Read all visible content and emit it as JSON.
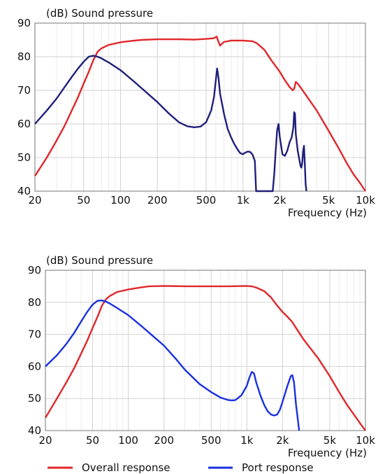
{
  "chart_data": [
    {
      "type": "line",
      "ylabel": "(dB)  Sound pressure",
      "xlabel": "Frequency  (Hz)",
      "x_scale": "log",
      "xlim": [
        20,
        10000
      ],
      "ylim": [
        40,
        90
      ],
      "grid": true,
      "x_tick_labels": [
        "20",
        "50",
        "100",
        "200",
        "500",
        "1k",
        "2k",
        "5k",
        "10k"
      ],
      "x_ticks": [
        20,
        50,
        100,
        200,
        500,
        1000,
        2000,
        5000,
        10000
      ],
      "y_ticks": [
        40,
        50,
        60,
        70,
        80,
        90
      ],
      "series": [
        {
          "color": "#e0272b",
          "points": [
            [
              20,
              44.5
            ],
            [
              25,
              50
            ],
            [
              30,
              55
            ],
            [
              35,
              59.5
            ],
            [
              40,
              64
            ],
            [
              45,
              68
            ],
            [
              50,
              72
            ],
            [
              55,
              75.5
            ],
            [
              60,
              79
            ],
            [
              65,
              81.5
            ],
            [
              70,
              82.5
            ],
            [
              80,
              83.5
            ],
            [
              100,
              84.3
            ],
            [
              130,
              84.8
            ],
            [
              150,
              85
            ],
            [
              200,
              85.2
            ],
            [
              300,
              85.2
            ],
            [
              400,
              85.1
            ],
            [
              500,
              85.3
            ],
            [
              580,
              85.5
            ],
            [
              610,
              86
            ],
            [
              630,
              84.5
            ],
            [
              650,
              83.3
            ],
            [
              680,
              84
            ],
            [
              700,
              84.4
            ],
            [
              800,
              84.8
            ],
            [
              1000,
              84.8
            ],
            [
              1200,
              84.6
            ],
            [
              1300,
              84
            ],
            [
              1500,
              82
            ],
            [
              1700,
              79
            ],
            [
              2000,
              75.5
            ],
            [
              2200,
              73
            ],
            [
              2400,
              71
            ],
            [
              2550,
              70
            ],
            [
              2620,
              70.5
            ],
            [
              2700,
              72.5
            ],
            [
              2800,
              72
            ],
            [
              3000,
              70.5
            ],
            [
              4000,
              64
            ],
            [
              5000,
              58
            ],
            [
              6000,
              53
            ],
            [
              7000,
              48.5
            ],
            [
              8000,
              45
            ],
            [
              9000,
              42.5
            ],
            [
              10000,
              40
            ]
          ]
        },
        {
          "color": "#1f1f7a",
          "points": [
            [
              20,
              60
            ],
            [
              25,
              64
            ],
            [
              30,
              67.5
            ],
            [
              35,
              71
            ],
            [
              40,
              74
            ],
            [
              45,
              76.5
            ],
            [
              50,
              78.5
            ],
            [
              55,
              80
            ],
            [
              60,
              80.3
            ],
            [
              65,
              80
            ],
            [
              70,
              79.5
            ],
            [
              80,
              78.3
            ],
            [
              100,
              76
            ],
            [
              130,
              72.5
            ],
            [
              150,
              70.5
            ],
            [
              200,
              66.5
            ],
            [
              250,
              63
            ],
            [
              300,
              60.5
            ],
            [
              350,
              59.3
            ],
            [
              400,
              59
            ],
            [
              450,
              59.2
            ],
            [
              500,
              60.5
            ],
            [
              550,
              64
            ],
            [
              580,
              68
            ],
            [
              600,
              73
            ],
            [
              615,
              76.5
            ],
            [
              630,
              74
            ],
            [
              650,
              69
            ],
            [
              700,
              63
            ],
            [
              750,
              58.5
            ],
            [
              800,
              56
            ],
            [
              850,
              54
            ],
            [
              900,
              52.5
            ],
            [
              950,
              51.3
            ],
            [
              1000,
              51
            ],
            [
              1050,
              51.5
            ],
            [
              1100,
              51.8
            ],
            [
              1150,
              51.6
            ],
            [
              1200,
              50.8
            ],
            [
              1250,
              49
            ],
            [
              1260,
              46
            ],
            [
              1280,
              40
            ],
            [
              1600,
              40
            ],
            [
              1620,
              40
            ],
            [
              1750,
              40
            ],
            [
              1800,
              45
            ],
            [
              1850,
              52
            ],
            [
              1900,
              58
            ],
            [
              1950,
              60
            ],
            [
              2000,
              56
            ],
            [
              2100,
              51
            ],
            [
              2200,
              50.5
            ],
            [
              2300,
              52
            ],
            [
              2400,
              54.5
            ],
            [
              2500,
              56
            ],
            [
              2580,
              59
            ],
            [
              2620,
              63.5
            ],
            [
              2660,
              63
            ],
            [
              2700,
              57
            ],
            [
              2800,
              52
            ],
            [
              2950,
              47.5
            ],
            [
              3000,
              47
            ],
            [
              3050,
              48.5
            ],
            [
              3100,
              52
            ],
            [
              3150,
              53.5
            ],
            [
              3200,
              48
            ],
            [
              3250,
              42
            ],
            [
              3300,
              40
            ]
          ]
        }
      ]
    },
    {
      "type": "line",
      "ylabel": "(dB)  Sound pressure",
      "xlabel": "Frequency  (Hz)",
      "x_scale": "log",
      "xlim": [
        20,
        10000
      ],
      "ylim": [
        40,
        90
      ],
      "grid": true,
      "x_tick_labels": [
        "20",
        "50",
        "100",
        "200",
        "500",
        "1k",
        "2k",
        "5k",
        "10k"
      ],
      "x_ticks": [
        20,
        50,
        100,
        200,
        500,
        1000,
        2000,
        5000,
        10000
      ],
      "y_ticks": [
        40,
        50,
        60,
        70,
        80,
        90
      ],
      "series": [
        {
          "name": "Overall response",
          "color": "#e0272b",
          "points": [
            [
              20,
              44
            ],
            [
              25,
              50
            ],
            [
              30,
              55
            ],
            [
              35,
              59.5
            ],
            [
              40,
              64
            ],
            [
              45,
              68
            ],
            [
              50,
              72
            ],
            [
              55,
              75.5
            ],
            [
              60,
              79
            ],
            [
              65,
              81
            ],
            [
              70,
              82
            ],
            [
              80,
              83.2
            ],
            [
              100,
              84
            ],
            [
              130,
              84.7
            ],
            [
              150,
              85
            ],
            [
              200,
              85.1
            ],
            [
              300,
              85
            ],
            [
              500,
              85
            ],
            [
              700,
              85
            ],
            [
              1000,
              85.1
            ],
            [
              1100,
              85
            ],
            [
              1200,
              84.6
            ],
            [
              1400,
              83.5
            ],
            [
              1600,
              81.5
            ],
            [
              1800,
              79
            ],
            [
              2000,
              77
            ],
            [
              2200,
              75.5
            ],
            [
              2400,
              74
            ],
            [
              2600,
              72
            ],
            [
              3000,
              68.5
            ],
            [
              4000,
              62.5
            ],
            [
              5000,
              57
            ],
            [
              6000,
              52
            ],
            [
              7000,
              48
            ],
            [
              8000,
              45
            ],
            [
              9000,
              42.3
            ],
            [
              10000,
              40
            ]
          ]
        },
        {
          "name": "Port response",
          "color": "#1a30e0",
          "points": [
            [
              20,
              60
            ],
            [
              25,
              63.5
            ],
            [
              30,
              67
            ],
            [
              35,
              70.5
            ],
            [
              40,
              74
            ],
            [
              45,
              77
            ],
            [
              50,
              79.3
            ],
            [
              55,
              80.5
            ],
            [
              60,
              80.6
            ],
            [
              65,
              80.2
            ],
            [
              70,
              79.6
            ],
            [
              80,
              78.3
            ],
            [
              100,
              76
            ],
            [
              130,
              72.5
            ],
            [
              150,
              70.5
            ],
            [
              200,
              66.5
            ],
            [
              250,
              62.5
            ],
            [
              300,
              59
            ],
            [
              400,
              54.5
            ],
            [
              500,
              52
            ],
            [
              600,
              50.3
            ],
            [
              700,
              49.5
            ],
            [
              750,
              49.4
            ],
            [
              800,
              49.5
            ],
            [
              900,
              51
            ],
            [
              1000,
              54
            ],
            [
              1050,
              56.5
            ],
            [
              1100,
              58.3
            ],
            [
              1150,
              57.8
            ],
            [
              1200,
              55
            ],
            [
              1300,
              51
            ],
            [
              1400,
              48
            ],
            [
              1500,
              46
            ],
            [
              1600,
              45
            ],
            [
              1700,
              44.7
            ],
            [
              1800,
              45
            ],
            [
              1900,
              46.5
            ],
            [
              2000,
              49
            ],
            [
              2200,
              54
            ],
            [
              2350,
              57
            ],
            [
              2420,
              57.3
            ],
            [
              2500,
              55
            ],
            [
              2600,
              48
            ],
            [
              2700,
              43
            ],
            [
              2760,
              40
            ]
          ]
        }
      ]
    }
  ],
  "legend": {
    "overall_label": "Overall response",
    "port_label": "Port response",
    "overall_color": "#e0272b",
    "port_color": "#1a30e0"
  }
}
